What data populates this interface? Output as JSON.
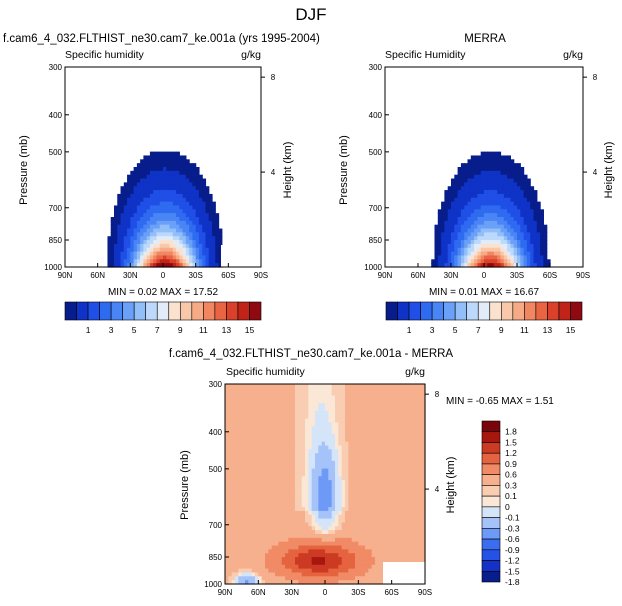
{
  "page": {
    "title": "DJF"
  },
  "colors": {
    "positive_scale": [
      "#081d8c",
      "#0f33c6",
      "#1f4fe6",
      "#2f6bf0",
      "#4a85f5",
      "#6aa0f8",
      "#93bff9",
      "#bcd8fa",
      "#e2ecf8",
      "#fbe2cf",
      "#f9c8aa",
      "#f6aa85",
      "#f18762",
      "#e96442",
      "#d9412a",
      "#c02318",
      "#8f0a10"
    ],
    "diff_scale": [
      "#081d8c",
      "#1432c8",
      "#2451e6",
      "#3a6df0",
      "#6d9af6",
      "#a5c3f8",
      "#d4e4f9",
      "#fbe7d6",
      "#f9cdb2",
      "#f6b08d",
      "#f08b66",
      "#e5633f",
      "#cc3a24",
      "#a8170e",
      "#7a040a"
    ]
  },
  "chart_data": [
    {
      "type": "heatmap",
      "subplot_title": "f.cam6_4_032.FLTHIST_ne30.cam7_ke.001a (yrs 1995-2004)",
      "left_label": "Specific humidity",
      "right_label": "g/kg",
      "ylabel": "Pressure (mb)",
      "y2label": "Height (km)",
      "x_ticks": [
        "90N",
        "60N",
        "30N",
        "0",
        "30S",
        "60S",
        "90S"
      ],
      "y_ticks": [
        300,
        400,
        500,
        700,
        850,
        1000
      ],
      "y2_ticks": [
        8,
        4
      ],
      "y_scale": "log",
      "ylim": [
        1000,
        300
      ],
      "stats": "MIN =  0.02  MAX =  17.52",
      "colorbar_labels": [
        "1",
        "3",
        "5",
        "7",
        "9",
        "11",
        "13",
        "15"
      ],
      "colorbar_levels": [
        0,
        1,
        2,
        3,
        4,
        5,
        6,
        7,
        8,
        9,
        10,
        11,
        12,
        13,
        14,
        15,
        16
      ],
      "max": 17.52,
      "min": 0.02
    },
    {
      "type": "heatmap",
      "subplot_title": "MERRA",
      "left_label": "Specific Humidity",
      "right_label": "g/kg",
      "ylabel": "Pressure (mb)",
      "y2label": "Height (km)",
      "x_ticks": [
        "90N",
        "60N",
        "30N",
        "0",
        "30S",
        "60S",
        "90S"
      ],
      "y_ticks": [
        300,
        400,
        500,
        700,
        850,
        1000
      ],
      "y2_ticks": [
        8,
        4
      ],
      "y_scale": "log",
      "ylim": [
        1000,
        300
      ],
      "stats": "MIN =  0.01  MAX =  16.67",
      "colorbar_labels": [
        "1",
        "3",
        "5",
        "7",
        "9",
        "11",
        "13",
        "15"
      ],
      "colorbar_levels": [
        0,
        1,
        2,
        3,
        4,
        5,
        6,
        7,
        8,
        9,
        10,
        11,
        12,
        13,
        14,
        15,
        16
      ],
      "max": 16.67,
      "min": 0.01
    },
    {
      "type": "heatmap",
      "subplot_title": "f.cam6_4_032.FLTHIST_ne30.cam7_ke.001a - MERRA",
      "left_label": "Specific humidity",
      "right_label": "g/kg",
      "ylabel": "Pressure (mb)",
      "y2label": "Height (km)",
      "x_ticks": [
        "90N",
        "60N",
        "30N",
        "0",
        "30S",
        "60S",
        "90S"
      ],
      "y_ticks": [
        300,
        400,
        500,
        700,
        850,
        1000
      ],
      "y2_ticks": [
        8,
        4
      ],
      "y_scale": "log",
      "ylim": [
        1000,
        300
      ],
      "stats": "MIN = -0.65  MAX =  1.51",
      "colorbar_labels": [
        "1.8",
        "1.5",
        "1.2",
        "0.9",
        "0.6",
        "0.3",
        "0.1",
        "0",
        "-0.1",
        "-0.3",
        "-0.6",
        "-0.9",
        "-1.2",
        "-1.5",
        "-1.8"
      ],
      "max": 1.51,
      "min": -0.65
    }
  ]
}
